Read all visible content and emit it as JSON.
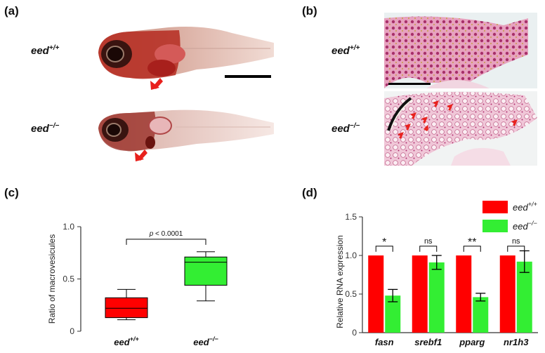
{
  "panels": {
    "a": {
      "label": "(a)",
      "genotypes": [
        "eed",
        "eed"
      ],
      "sups": [
        "+/+",
        "−/−"
      ]
    },
    "b": {
      "label": "(b)",
      "genotypes": [
        "eed",
        "eed"
      ],
      "sups": [
        "+/+",
        "−/−"
      ]
    },
    "c": {
      "label": "(c)"
    },
    "d": {
      "label": "(d)"
    }
  },
  "colors": {
    "wt": "#ff0000",
    "ko": "#33ee33",
    "arrow": "#e8201c"
  },
  "chart_data": [
    {
      "type": "box",
      "panel": "c",
      "ylabel": "Ratio of macrovesicules",
      "ylim": [
        0,
        1.0
      ],
      "yticks": [
        "0",
        "0.5",
        "1.0"
      ],
      "annotation": "p < 0.0001",
      "annotation_p": "p",
      "annotation_rest": " < 0.0001",
      "categories": [
        "eed",
        "eed"
      ],
      "category_sups": [
        "+/+",
        "−/−"
      ],
      "boxes": [
        {
          "min": 0.11,
          "q1": 0.13,
          "median": 0.22,
          "q3": 0.32,
          "max": 0.4,
          "color": "#ff0000"
        },
        {
          "min": 0.29,
          "q1": 0.44,
          "median": 0.66,
          "q3": 0.71,
          "max": 0.76,
          "color": "#33ee33"
        }
      ]
    },
    {
      "type": "bar",
      "panel": "d",
      "ylabel": "Relative RNA expression",
      "ylim": [
        0,
        1.5
      ],
      "yticks": [
        "0",
        "0.5",
        "1.0",
        "1.5"
      ],
      "categories": [
        "fasn",
        "srebf1",
        "pparg",
        "nr1h3"
      ],
      "series": [
        {
          "name": "eed",
          "sup": "+/+",
          "color": "#ff0000",
          "values": [
            1.0,
            1.0,
            1.0,
            1.0
          ],
          "errors": [
            0,
            0,
            0,
            0
          ]
        },
        {
          "name": "eed",
          "sup": "−/−",
          "color": "#33ee33",
          "values": [
            0.48,
            0.91,
            0.46,
            0.92
          ],
          "errors": [
            0.08,
            0.09,
            0.05,
            0.14
          ]
        }
      ],
      "significance": [
        "*",
        "ns",
        "**",
        "ns"
      ],
      "legend_position": "top-right"
    }
  ]
}
